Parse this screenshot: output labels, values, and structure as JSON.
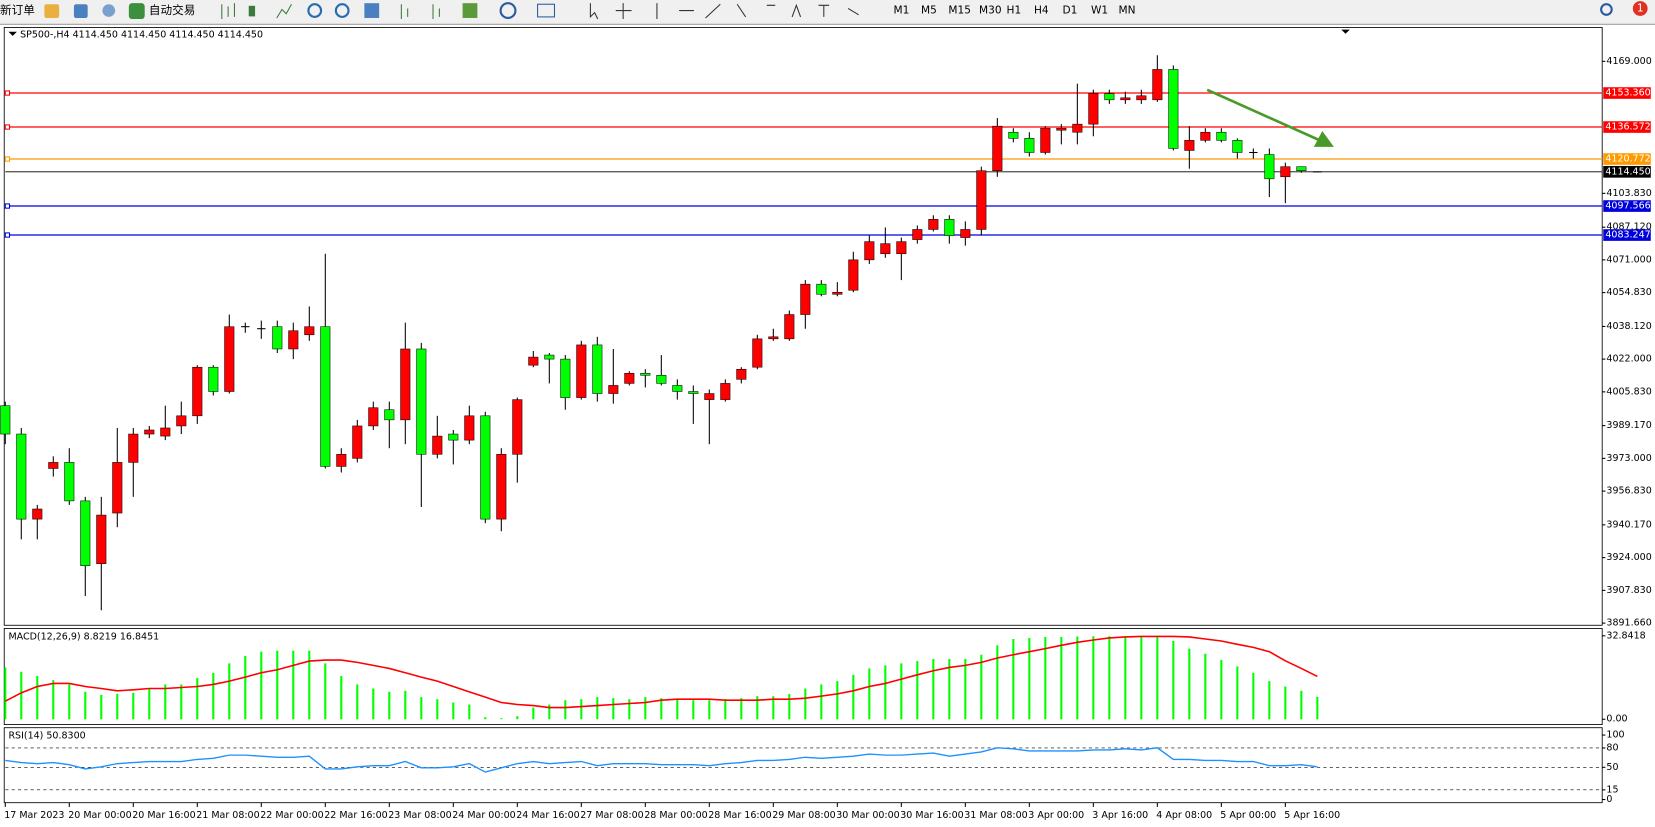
{
  "toolbar": {
    "new_order": "新订单",
    "auto_trading": "自动交易",
    "timeframes": [
      "M1",
      "M5",
      "M15",
      "M30",
      "H1",
      "H4",
      "D1",
      "W1",
      "MN"
    ],
    "alert_count": "1"
  },
  "chart_data": [
    {
      "type": "candlestick",
      "title": "SP500-,H4  4114.450 4114.450 4114.450 4114.450",
      "categories": [
        "17 Mar 2023",
        null,
        null,
        null,
        "20 Mar 00:00",
        null,
        null,
        null,
        "20 Mar 16:00",
        null,
        null,
        null,
        "21 Mar 08:00",
        null,
        null,
        null,
        "22 Mar 00:00",
        null,
        null,
        null,
        "22 Mar 16:00",
        null,
        null,
        null,
        "23 Mar 08:00",
        null,
        null,
        null,
        "24 Mar 00:00",
        null,
        null,
        null,
        "24 Mar 16:00",
        null,
        null,
        null,
        "27 Mar 08:00",
        null,
        null,
        null,
        "28 Mar 00:00",
        null,
        null,
        null,
        "28 Mar 16:00",
        null,
        null,
        null,
        "29 Mar 08:00",
        null,
        null,
        null,
        "30 Mar 00:00",
        null,
        null,
        null,
        "30 Mar 16:00",
        null,
        null,
        null,
        "31 Mar 08:00",
        null,
        null,
        null,
        "3 Apr 00:00",
        null,
        null,
        null,
        "3 Apr 16:00",
        null,
        null,
        null,
        "4 Apr 08:00",
        null,
        null,
        null,
        "5 Apr 00:00",
        null,
        null,
        null,
        "5 Apr 16:00",
        null,
        null
      ],
      "open": [
        3999,
        3985,
        3943,
        3968,
        3971,
        3952,
        3921,
        3946,
        3971,
        3985,
        3984,
        3989,
        3994,
        4018,
        4006,
        4038,
        4037,
        4038,
        4027,
        4034,
        4038,
        3969,
        3973,
        3989,
        3997,
        3992,
        4027,
        3975,
        3985,
        3982,
        3994,
        3943,
        3975,
        4019,
        4024,
        4022,
        4003,
        4029,
        4005,
        4010,
        4015,
        4014,
        4009,
        4006,
        4002,
        4002,
        4012,
        4018,
        4032,
        4032,
        4044,
        4059,
        4054,
        4056,
        4071,
        4074,
        4074,
        4081,
        4086,
        4091,
        4082,
        4086,
        4115,
        4134,
        4131,
        4124,
        4135,
        4134,
        4138,
        4153,
        4150,
        4150,
        4150,
        4165,
        4125,
        4130,
        4134,
        4130,
        4124,
        4123,
        4112,
        4117,
        4114.45
      ],
      "high": [
        4001,
        3988,
        3950,
        3974,
        3978,
        3954,
        3954,
        3988,
        3988,
        3989,
        3999,
        4001,
        4019,
        4019,
        4044,
        4040,
        4041,
        4041,
        4040,
        4048,
        4074,
        3978,
        3992,
        4001,
        4001,
        4040,
        4030,
        3994,
        3987,
        3999,
        3996,
        3978,
        4003,
        4026,
        4025,
        4024,
        4031,
        4033,
        4027,
        4016,
        4017,
        4024,
        4012,
        4009,
        4007,
        4012,
        4018,
        4034,
        4037,
        4046,
        4061,
        4061,
        4060,
        4075,
        4083,
        4087,
        4082,
        4088,
        4093,
        4093,
        4090,
        4117,
        4141,
        4136,
        4134,
        4137,
        4138,
        4158,
        4155,
        4155,
        4154,
        4155,
        4172,
        4167,
        4137,
        4136,
        4136,
        4131,
        4126,
        4126,
        4119,
        4117,
        4114.45
      ],
      "low": [
        3980,
        3933,
        3933,
        3964,
        3950,
        3905,
        3898,
        3939,
        3954,
        3983,
        3982,
        3985,
        3990,
        4004,
        4005,
        4035,
        4032,
        4025,
        4022,
        4031,
        3968,
        3966,
        3971,
        3987,
        3978,
        3980,
        3949,
        3973,
        3970,
        3980,
        3941,
        3937,
        3961,
        4018,
        4010,
        3997,
        4002,
        4001,
        4000,
        4009,
        4008,
        4009,
        4002,
        3990,
        3980,
        4001,
        4010,
        4017,
        4031,
        4031,
        4037,
        4053,
        4053,
        4055,
        4069,
        4072,
        4061,
        4079,
        4085,
        4079,
        4078,
        4083,
        4112,
        4129,
        4122,
        4123,
        4128,
        4128,
        4132,
        4148,
        4148,
        4148,
        4149,
        4125,
        4116,
        4129,
        4129,
        4121,
        4121,
        4102,
        4099,
        4114,
        4114.45
      ],
      "close": [
        3985,
        3943,
        3948,
        3971,
        3952,
        3920,
        3945,
        3971,
        3985,
        3987,
        3988,
        3994,
        4018,
        4006,
        4038,
        4038,
        4037,
        4027,
        4036,
        4038,
        3969,
        3975,
        3989,
        3998,
        3992,
        4027,
        3975,
        3984,
        3982,
        3994,
        3943,
        3975,
        4002,
        4023,
        4022,
        4003,
        4029,
        4005,
        4009,
        4015,
        4014,
        4010,
        4006,
        4005,
        4005,
        4010,
        4017,
        4032,
        4033,
        4044,
        4059,
        4054,
        4055,
        4071,
        4080,
        4079,
        4080,
        4086,
        4091,
        4083,
        4086,
        4115,
        4137,
        4131,
        4124,
        4136,
        4136,
        4138,
        4153,
        4150,
        4151,
        4152,
        4165,
        4126,
        4130,
        4134,
        4130,
        4124,
        4124,
        4111,
        4117,
        4115,
        4114.45
      ],
      "up_color": "#ff0000",
      "down_color": "#00ff00",
      "ylim": [
        3890.6,
        4185.2
      ],
      "yticks": [
        {
          "value": 4169,
          "label": "4169.000"
        },
        {
          "value": 4103.83,
          "label": "4103.830"
        },
        {
          "value": 4087.12,
          "label": "4087.120"
        },
        {
          "value": 4071,
          "label": "4071.000"
        },
        {
          "value": 4054.83,
          "label": "4054.830"
        },
        {
          "value": 4038.12,
          "label": "4038.120"
        },
        {
          "value": 4022,
          "label": "4022.000"
        },
        {
          "value": 4005.83,
          "label": "4005.830"
        },
        {
          "value": 3989.17,
          "label": "3989.170"
        },
        {
          "value": 3973,
          "label": "3973.000"
        },
        {
          "value": 3956.83,
          "label": "3956.830"
        },
        {
          "value": 3940.17,
          "label": "3940.170"
        },
        {
          "value": 3924,
          "label": "3924.000"
        },
        {
          "value": 3907.83,
          "label": "3907.830"
        },
        {
          "value": 3891.66,
          "label": "3891.660"
        }
      ],
      "levels": [
        {
          "value": 4153.36,
          "label": "4153.360",
          "color": "#ff0000"
        },
        {
          "value": 4136.572,
          "label": "4136.572",
          "color": "#ff0000"
        },
        {
          "value": 4120.772,
          "label": "4120.772",
          "color": "#ff9900"
        },
        {
          "value": 4097.566,
          "label": "4097.566",
          "color": "#0000dd"
        },
        {
          "value": 4083.247,
          "label": "4083.247",
          "color": "#0000dd"
        }
      ],
      "current_price": {
        "value": 4114.45,
        "label": "4114.450",
        "color": "#000000"
      },
      "grid": false
    },
    {
      "type": "macd",
      "title": "MACD(12,26,9) 8.8219 16.8451",
      "series": [
        {
          "type": "bar",
          "color": "#00ff00",
          "values": [
            20.4,
            18.7,
            17.0,
            15.4,
            13.7,
            10.8,
            9.6,
            10.0,
            10.4,
            12.1,
            13.7,
            13.7,
            16.2,
            18.3,
            22.0,
            24.9,
            26.6,
            27.0,
            27.0,
            27.0,
            22.0,
            17.0,
            13.7,
            12.1,
            10.8,
            11.2,
            8.7,
            7.9,
            6.6,
            5.8,
            0.8,
            0.4,
            1.2,
            4.6,
            5.8,
            7.5,
            7.9,
            8.7,
            8.3,
            7.9,
            8.7,
            8.3,
            7.9,
            7.5,
            7.5,
            7.9,
            8.3,
            9.1,
            9.1,
            10.0,
            12.1,
            13.7,
            15.0,
            17.5,
            20.0,
            21.2,
            22.0,
            22.9,
            23.7,
            23.7,
            23.7,
            25.4,
            29.1,
            31.6,
            32.0,
            32.4,
            32.4,
            32.6,
            32.7,
            32.7,
            32.7,
            32.7,
            32.8418,
            30.8,
            27.8,
            25.8,
            23.3,
            20.8,
            18.3,
            15.0,
            12.9,
            11.2,
            8.8219
          ]
        },
        {
          "type": "line",
          "color": "#ff0000",
          "values": [
            7.1,
            10.4,
            12.9,
            14.1,
            14.1,
            12.9,
            12.1,
            11.2,
            11.6,
            12.1,
            12.1,
            12.5,
            12.9,
            13.7,
            15.0,
            16.6,
            18.3,
            19.5,
            21.2,
            22.9,
            23.3,
            23.3,
            22.4,
            21.2,
            20.0,
            18.3,
            16.6,
            15.0,
            12.9,
            10.8,
            8.7,
            6.6,
            5.8,
            5.4,
            4.6,
            4.6,
            5.0,
            5.4,
            5.8,
            6.2,
            6.6,
            7.5,
            7.9,
            7.9,
            7.9,
            7.5,
            7.5,
            7.5,
            7.9,
            7.9,
            8.3,
            9.1,
            10.0,
            11.2,
            12.9,
            14.1,
            15.8,
            17.5,
            19.1,
            20.4,
            21.2,
            22.4,
            24.1,
            25.4,
            26.6,
            27.8,
            29.1,
            30.3,
            31.2,
            32.0,
            32.4,
            32.6,
            32.6,
            32.6,
            32.4,
            31.6,
            30.8,
            29.5,
            28.3,
            26.6,
            23.0,
            20.0,
            16.8451
          ]
        }
      ],
      "ylim": [
        -2.08,
        35.34
      ],
      "yticks": [
        {
          "value": 32.8418,
          "label": "32.8418"
        },
        {
          "value": 0,
          "label": "0.00"
        }
      ]
    },
    {
      "type": "line",
      "title": "RSI(14) 50.8300",
      "color": "#1e90ff",
      "values": [
        60.7,
        57.4,
        55.7,
        57.4,
        54.1,
        47.5,
        50.8,
        55.7,
        57.4,
        59.0,
        59.0,
        59.0,
        62.3,
        63.9,
        68.9,
        68.9,
        67.2,
        65.6,
        65.6,
        67.2,
        47.5,
        47.5,
        50.8,
        52.5,
        52.5,
        59.0,
        49.2,
        49.2,
        50.8,
        55.7,
        42.6,
        49.2,
        55.7,
        59.0,
        55.7,
        57.4,
        59.0,
        52.5,
        55.7,
        55.7,
        55.7,
        54.1,
        54.1,
        54.1,
        52.5,
        55.7,
        57.4,
        60.7,
        60.7,
        62.3,
        65.6,
        63.9,
        65.6,
        67.2,
        70.5,
        68.9,
        68.9,
        70.5,
        72.1,
        67.2,
        70.5,
        73.8,
        80.3,
        78.7,
        75.4,
        75.4,
        75.4,
        75.4,
        77.0,
        77.0,
        78.7,
        77.0,
        80.3,
        62.3,
        62.3,
        60.7,
        60.7,
        59.0,
        59.0,
        52.5,
        52.5,
        54.1,
        50.83
      ],
      "ylim": [
        -4.9,
        109.8
      ],
      "yticks": [
        100,
        80,
        50,
        15,
        0
      ],
      "grid": "dashed"
    }
  ]
}
